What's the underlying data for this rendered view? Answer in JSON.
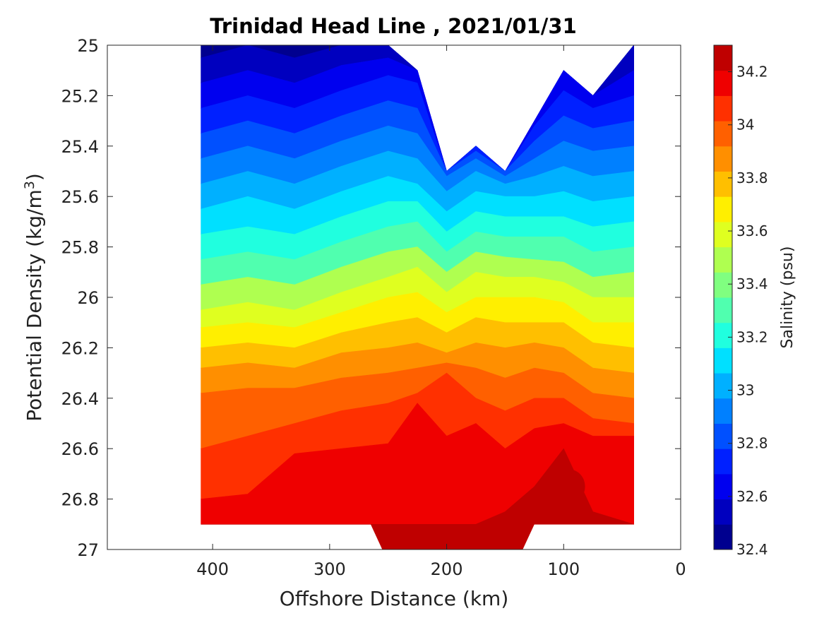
{
  "chart_data": {
    "type": "contourf",
    "title": "Trinidad Head Line , 2021/01/31",
    "xlabel": "Offshore Distance (km)",
    "ylabel": "Potential Density (kg/m",
    "ylabel_sup": "3",
    "ylabel_close": ")",
    "x_reversed": true,
    "y_reversed": true,
    "xlim": [
      490,
      0
    ],
    "ylim": [
      25,
      27
    ],
    "x_ticks": [
      {
        "value": 400,
        "label": "400"
      },
      {
        "value": 300,
        "label": "300"
      },
      {
        "value": 200,
        "label": "200"
      },
      {
        "value": 100,
        "label": "100"
      },
      {
        "value": 0,
        "label": "0"
      }
    ],
    "y_ticks": [
      {
        "value": 25,
        "label": "25"
      },
      {
        "value": 25.2,
        "label": "25.2"
      },
      {
        "value": 25.4,
        "label": "25.4"
      },
      {
        "value": 25.6,
        "label": "25.6"
      },
      {
        "value": 25.8,
        "label": "25.8"
      },
      {
        "value": 26,
        "label": "26"
      },
      {
        "value": 26.2,
        "label": "26.2"
      },
      {
        "value": 26.4,
        "label": "26.4"
      },
      {
        "value": 26.6,
        "label": "26.6"
      },
      {
        "value": 26.8,
        "label": "26.8"
      },
      {
        "value": 27,
        "label": "27"
      }
    ],
    "colorbar": {
      "label": "Salinity (psu)",
      "min": 32.4,
      "max": 34.3,
      "ticks": [
        {
          "value": 32.4,
          "label": "32.4"
        },
        {
          "value": 32.6,
          "label": "32.6"
        },
        {
          "value": 32.8,
          "label": "32.8"
        },
        {
          "value": 33,
          "label": "33"
        },
        {
          "value": 33.2,
          "label": "33.2"
        },
        {
          "value": 33.4,
          "label": "33.4"
        },
        {
          "value": 33.6,
          "label": "33.6"
        },
        {
          "value": 33.8,
          "label": "33.8"
        },
        {
          "value": 34,
          "label": "34"
        },
        {
          "value": 34.2,
          "label": "34.2"
        }
      ],
      "colors": [
        "#00008f",
        "#0000bf",
        "#0000ef",
        "#0020ff",
        "#0050ff",
        "#0080ff",
        "#00b0ff",
        "#00e0ff",
        "#20ffdf",
        "#50ffaf",
        "#80ff80",
        "#afff50",
        "#dfff20",
        "#ffef00",
        "#ffbf00",
        "#ff8f00",
        "#ff6000",
        "#ff3000",
        "#ef0000",
        "#bf0000"
      ]
    },
    "data_extent_x": [
      410,
      40
    ],
    "data_extent_y_bottom": 26.9,
    "salinity_field": {
      "stations_x": [
        410,
        370,
        330,
        290,
        250,
        225,
        200,
        175,
        150,
        125,
        100,
        75,
        40
      ],
      "surface_density": [
        25.0,
        25.0,
        25.0,
        25.0,
        25.0,
        25.1,
        25.5,
        25.4,
        25.5,
        25.3,
        25.1,
        25.2,
        25.0
      ],
      "isohaline_depths": [
        {
          "salinity": 32.5,
          "density": [
            25.05,
            25.0,
            25.05,
            25.0,
            25.0,
            25.1,
            25.5,
            25.4,
            25.5,
            25.3,
            25.1,
            25.2,
            25.0
          ]
        },
        {
          "salinity": 32.6,
          "density": [
            25.15,
            25.1,
            25.15,
            25.08,
            25.05,
            25.1,
            25.5,
            25.4,
            25.5,
            25.3,
            25.1,
            25.2,
            25.1
          ]
        },
        {
          "salinity": 32.7,
          "density": [
            25.25,
            25.2,
            25.25,
            25.18,
            25.12,
            25.15,
            25.5,
            25.4,
            25.5,
            25.32,
            25.18,
            25.25,
            25.2
          ]
        },
        {
          "salinity": 32.8,
          "density": [
            25.35,
            25.3,
            25.35,
            25.28,
            25.22,
            25.25,
            25.5,
            25.42,
            25.5,
            25.38,
            25.28,
            25.33,
            25.3
          ]
        },
        {
          "salinity": 32.9,
          "density": [
            25.45,
            25.4,
            25.45,
            25.38,
            25.32,
            25.35,
            25.52,
            25.45,
            25.52,
            25.45,
            25.38,
            25.42,
            25.4
          ]
        },
        {
          "salinity": 33.0,
          "density": [
            25.55,
            25.5,
            25.55,
            25.48,
            25.42,
            25.45,
            25.58,
            25.5,
            25.55,
            25.52,
            25.48,
            25.52,
            25.5
          ]
        },
        {
          "salinity": 33.1,
          "density": [
            25.65,
            25.6,
            25.65,
            25.58,
            25.52,
            25.55,
            25.66,
            25.58,
            25.6,
            25.6,
            25.58,
            25.62,
            25.6
          ]
        },
        {
          "salinity": 33.2,
          "density": [
            25.75,
            25.72,
            25.75,
            25.68,
            25.62,
            25.62,
            25.74,
            25.66,
            25.68,
            25.68,
            25.68,
            25.72,
            25.7
          ]
        },
        {
          "salinity": 33.3,
          "density": [
            25.85,
            25.82,
            25.85,
            25.78,
            25.72,
            25.7,
            25.82,
            25.74,
            25.76,
            25.76,
            25.76,
            25.82,
            25.8
          ]
        },
        {
          "salinity": 33.4,
          "density": [
            25.95,
            25.92,
            25.95,
            25.88,
            25.82,
            25.8,
            25.9,
            25.82,
            25.84,
            25.85,
            25.86,
            25.92,
            25.9
          ]
        },
        {
          "salinity": 33.5,
          "density": [
            26.05,
            26.02,
            26.05,
            25.98,
            25.92,
            25.88,
            25.98,
            25.9,
            25.92,
            25.92,
            25.94,
            26.0,
            26.0
          ]
        },
        {
          "salinity": 33.6,
          "density": [
            26.12,
            26.1,
            26.12,
            26.06,
            26.0,
            25.98,
            26.06,
            26.0,
            26.0,
            26.0,
            26.02,
            26.1,
            26.1
          ]
        },
        {
          "salinity": 33.7,
          "density": [
            26.2,
            26.18,
            26.2,
            26.14,
            26.1,
            26.08,
            26.14,
            26.08,
            26.1,
            26.1,
            26.1,
            26.18,
            26.2
          ]
        },
        {
          "salinity": 33.8,
          "density": [
            26.28,
            26.26,
            26.28,
            26.22,
            26.2,
            26.18,
            26.22,
            26.18,
            26.2,
            26.18,
            26.2,
            26.28,
            26.3
          ]
        },
        {
          "salinity": 33.9,
          "density": [
            26.38,
            26.36,
            26.36,
            26.32,
            26.3,
            26.28,
            26.26,
            26.28,
            26.32,
            26.28,
            26.3,
            26.38,
            26.4
          ]
        },
        {
          "salinity": 34.0,
          "density": [
            26.6,
            26.55,
            26.5,
            26.45,
            26.42,
            26.38,
            26.3,
            26.4,
            26.45,
            26.4,
            26.4,
            26.48,
            26.5
          ]
        },
        {
          "salinity": 34.1,
          "density": [
            26.8,
            26.78,
            26.62,
            26.6,
            26.58,
            26.42,
            26.55,
            26.5,
            26.6,
            26.52,
            26.5,
            26.55,
            26.55
          ]
        },
        {
          "salinity": 34.2,
          "density": [
            26.95,
            26.95,
            26.95,
            26.95,
            26.9,
            26.92,
            26.92,
            26.9,
            26.85,
            26.75,
            26.6,
            26.85,
            26.95
          ]
        }
      ],
      "deep_extension": {
        "x_range": [
          265,
          125
        ],
        "density_to": 27.0
      },
      "salinity_max_patch": {
        "center_x": 95,
        "center_density": 26.75,
        "salinity": 34.25
      }
    }
  }
}
